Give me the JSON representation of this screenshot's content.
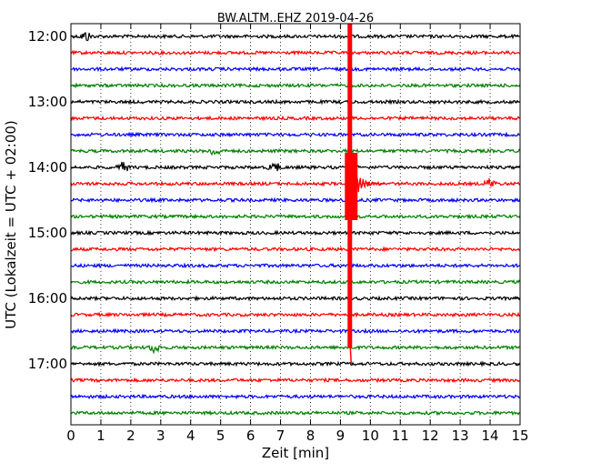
{
  "chart_data": {
    "type": "line",
    "title": "BW.ALTM..EHZ 2019-04-26",
    "xlabel": "Zeit  [min]",
    "ylabel": "UTC (Lokalzeit = UTC + 02:00)",
    "xlim": [
      0,
      15
    ],
    "x_ticks": [
      0,
      1,
      2,
      3,
      4,
      5,
      6,
      7,
      8,
      9,
      10,
      11,
      12,
      13,
      14,
      15
    ],
    "y_tick_labels": [
      "12:00",
      "13:00",
      "14:00",
      "15:00",
      "16:00",
      "17:00"
    ],
    "grid": "vertical dotted",
    "trace_interval_minutes": 15,
    "trace_colors": [
      "#000000",
      "#ff0000",
      "#0000ff",
      "#008000"
    ],
    "series": [
      {
        "start": "12:00",
        "color": "#000000"
      },
      {
        "start": "12:15",
        "color": "#ff0000"
      },
      {
        "start": "12:30",
        "color": "#0000ff"
      },
      {
        "start": "12:45",
        "color": "#008000"
      },
      {
        "start": "13:00",
        "color": "#000000"
      },
      {
        "start": "13:15",
        "color": "#ff0000"
      },
      {
        "start": "13:30",
        "color": "#0000ff"
      },
      {
        "start": "13:45",
        "color": "#008000"
      },
      {
        "start": "14:00",
        "color": "#000000"
      },
      {
        "start": "14:15",
        "color": "#ff0000"
      },
      {
        "start": "14:30",
        "color": "#0000ff"
      },
      {
        "start": "14:45",
        "color": "#008000"
      },
      {
        "start": "15:00",
        "color": "#000000"
      },
      {
        "start": "15:15",
        "color": "#ff0000"
      },
      {
        "start": "15:30",
        "color": "#0000ff"
      },
      {
        "start": "15:45",
        "color": "#008000"
      },
      {
        "start": "16:00",
        "color": "#000000"
      },
      {
        "start": "16:15",
        "color": "#ff0000"
      },
      {
        "start": "16:30",
        "color": "#0000ff"
      },
      {
        "start": "16:45",
        "color": "#008000"
      },
      {
        "start": "17:00",
        "color": "#000000"
      },
      {
        "start": "17:15",
        "color": "#ff0000"
      },
      {
        "start": "17:30",
        "color": "#0000ff"
      },
      {
        "start": "17:45",
        "color": "#008000"
      }
    ],
    "events": [
      {
        "start": "12:00",
        "x": 0.5
      },
      {
        "start": "13:45",
        "x": 4.8
      },
      {
        "start": "14:00",
        "x": 1.75
      },
      {
        "start": "14:00",
        "x": 6.8
      },
      {
        "start": "14:15",
        "x": 9.3,
        "type": "earthquake"
      },
      {
        "start": "14:15",
        "x": 14.0
      },
      {
        "start": "16:45",
        "x": 2.8
      }
    ]
  }
}
